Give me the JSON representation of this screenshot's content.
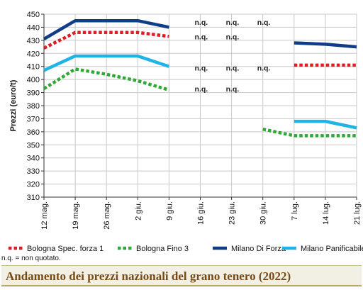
{
  "footer": {
    "title": "Andamento dei prezzi nazionali del grano tenero (2022)"
  },
  "note": "n.q. = non quotato.",
  "chart_data": {
    "type": "line",
    "title": "",
    "xlabel": "",
    "ylabel": "Prezzi (euro/t)",
    "ylim": [
      310,
      450
    ],
    "yticks": [
      310,
      320,
      330,
      340,
      350,
      360,
      370,
      380,
      390,
      400,
      410,
      420,
      430,
      440,
      450
    ],
    "categories": [
      "12 mag.",
      "19 mag.",
      "26 mag.",
      "2 giu.",
      "9 giu.",
      "16 giu.",
      "23 giu.",
      "30 giu.",
      "7 lug.",
      "14 lug.",
      "21 lug."
    ],
    "grid": true,
    "legend_position": "bottom",
    "series": [
      {
        "name": "Bologna Spec. forza 1",
        "color": "#e01d24",
        "style": "dotted",
        "values": [
          424,
          436,
          436,
          436,
          433,
          null,
          null,
          null,
          411,
          411,
          411
        ]
      },
      {
        "name": "Bologna Fino 3",
        "color": "#2fa836",
        "style": "dotted",
        "values": [
          393,
          408,
          404,
          399,
          392,
          null,
          null,
          362,
          357,
          357,
          357
        ]
      },
      {
        "name": "Milano Di Forza",
        "color": "#0f3d87",
        "style": "solid",
        "values": [
          431,
          445,
          445,
          445,
          440,
          null,
          null,
          null,
          428,
          427,
          425
        ]
      },
      {
        "name": "Milano Panificabile",
        "color": "#1fb3e6",
        "style": "solid",
        "values": [
          407,
          418,
          418,
          418,
          410,
          null,
          null,
          null,
          368,
          368,
          363
        ]
      }
    ],
    "annotations": [
      {
        "category": "16 giu.",
        "y": 444,
        "text": "n.q."
      },
      {
        "category": "23 giu.",
        "y": 444,
        "text": "n.q."
      },
      {
        "category": "30 giu.",
        "y": 444,
        "text": "n.q."
      },
      {
        "category": "16 giu.",
        "y": 433,
        "text": "n.q."
      },
      {
        "category": "23 giu.",
        "y": 433,
        "text": "n.q."
      },
      {
        "category": "16 giu.",
        "y": 409,
        "text": "n.q."
      },
      {
        "category": "23 giu.",
        "y": 409,
        "text": "n.q."
      },
      {
        "category": "30 giu.",
        "y": 409,
        "text": "n.q."
      },
      {
        "category": "16 giu.",
        "y": 393,
        "text": "n.q."
      },
      {
        "category": "23 giu.",
        "y": 393,
        "text": "n.q."
      }
    ]
  }
}
